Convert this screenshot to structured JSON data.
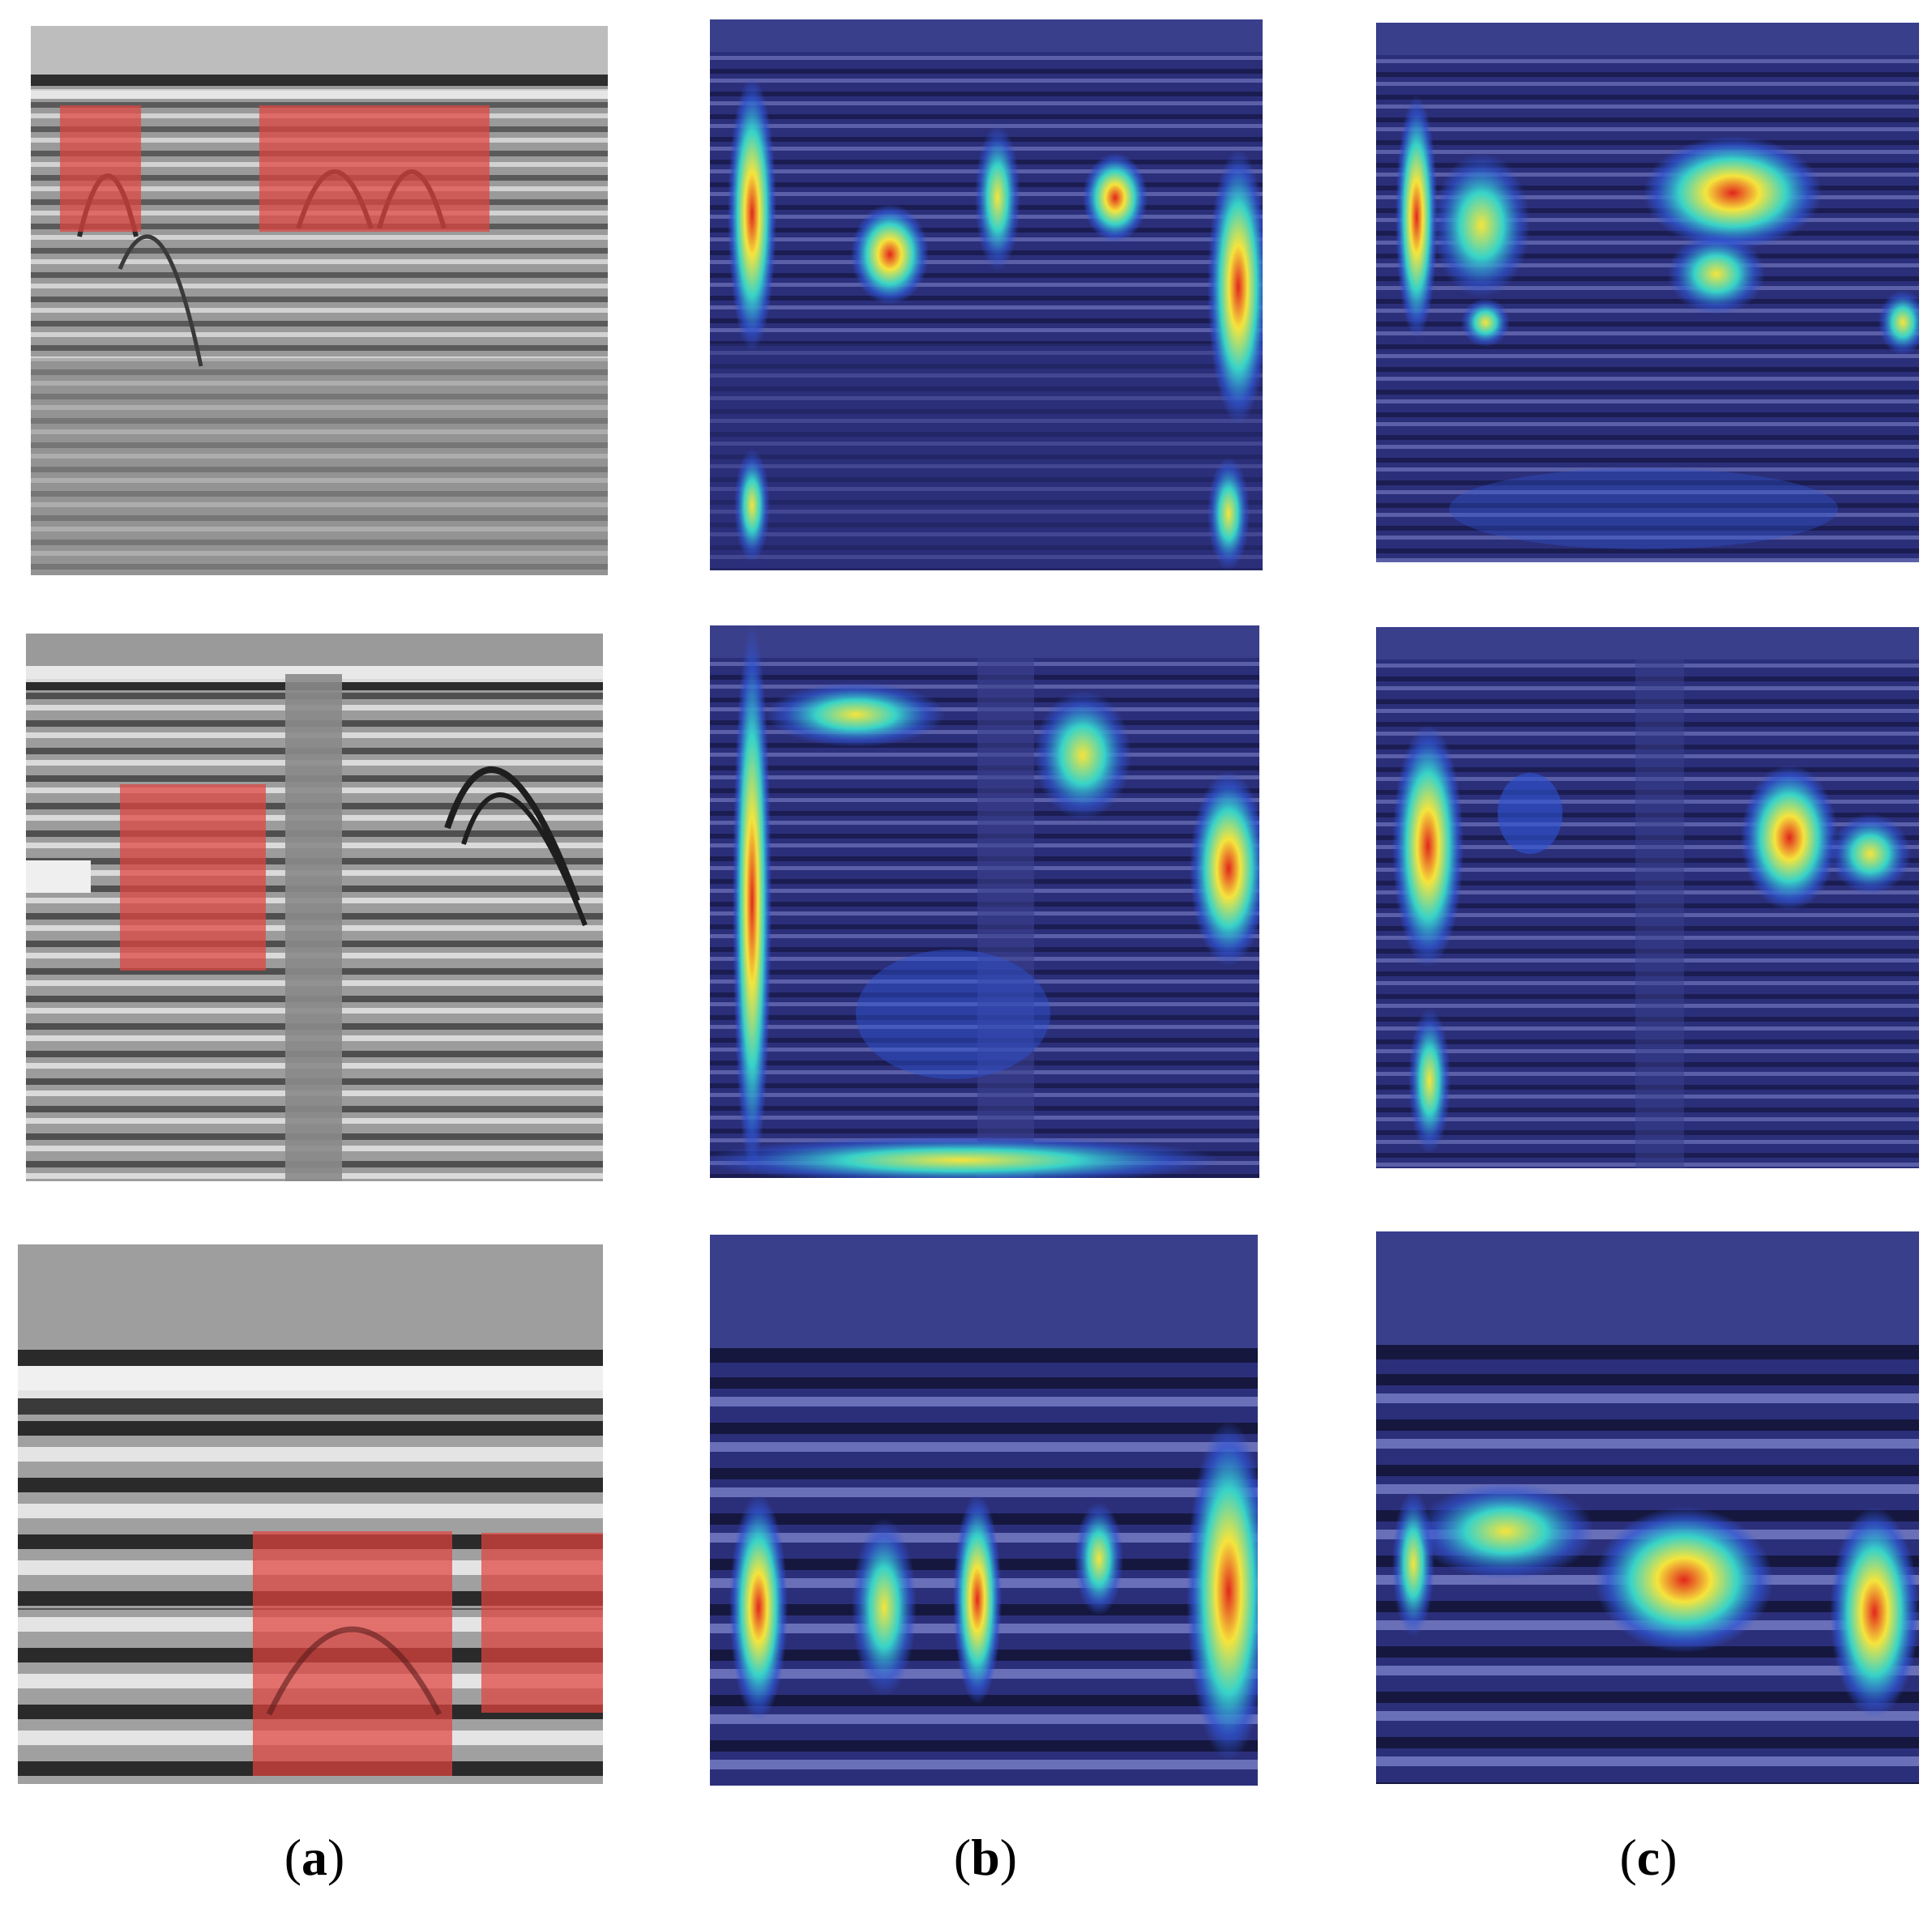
{
  "figure": {
    "captions": [
      {
        "open": "(",
        "letter": "a",
        "close": ")"
      },
      {
        "open": "(",
        "letter": "b",
        "close": ")"
      },
      {
        "open": "(",
        "letter": "c",
        "close": ")"
      }
    ],
    "columns": [
      {
        "name": "gpr-radargram-with-detection-boxes",
        "style": "grayscale"
      },
      {
        "name": "heatmap-overlay-b",
        "style": "jet-on-blue"
      },
      {
        "name": "heatmap-overlay-c",
        "style": "jet-on-blue"
      }
    ],
    "colors": {
      "detection_box": "#e0443f",
      "heatmap_base": "#2b2f7a",
      "heat_low": "#2f55d4",
      "heat_mid": "#37d3c8",
      "heat_warm": "#f5e43c",
      "heat_hot": "#e2261c",
      "radar_dark": "#3a3a3a",
      "radar_light": "#cfcfcf"
    }
  }
}
